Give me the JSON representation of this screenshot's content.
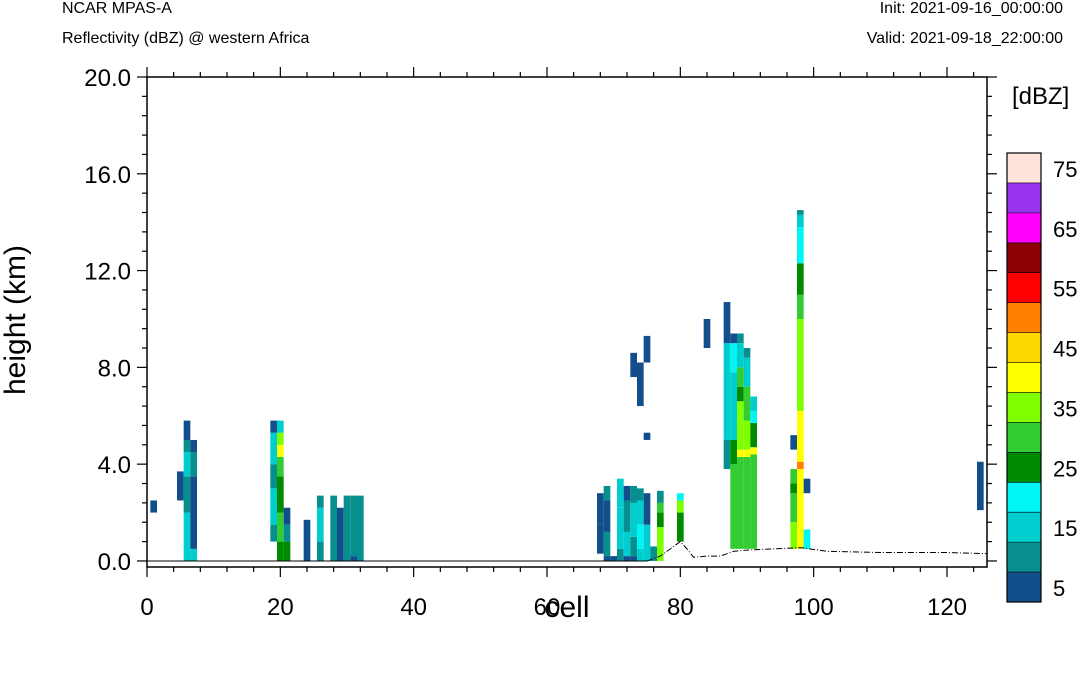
{
  "header": {
    "model": "NCAR MPAS-A",
    "field": "Reflectivity (dBZ) @ western Africa",
    "init": "Init: 2021-09-16_00:00:00",
    "valid": "Valid: 2021-09-18_22:00:00"
  },
  "chart_data": {
    "type": "heatmap",
    "title": "",
    "xlabel": "cell",
    "ylabel": "height (km)",
    "xlim": [
      0,
      126
    ],
    "ylim": [
      -0.25,
      20
    ],
    "x_ticks": [
      0,
      20,
      40,
      60,
      80,
      100,
      120
    ],
    "y_ticks": [
      0,
      4,
      8,
      12,
      16,
      20
    ],
    "y_tick_labels": [
      "0.0",
      "4.0",
      "8.0",
      "12.0",
      "16.0",
      "20.0"
    ],
    "colorbar": {
      "unit_label": "[dBZ]",
      "levels": [
        5,
        10,
        15,
        20,
        25,
        30,
        35,
        40,
        45,
        50,
        55,
        60,
        65,
        70,
        75
      ],
      "tick_labels": [
        "5",
        "15",
        "25",
        "35",
        "45",
        "55",
        "65",
        "75"
      ],
      "colors": [
        "#134e8c",
        "#078e8e",
        "#00cdcd",
        "#00f5f5",
        "#008a00",
        "#33cc33",
        "#7fff00",
        "#ffff00",
        "#ffd700",
        "#ff8000",
        "#ff0000",
        "#8b0000",
        "#ff00ff",
        "#9933ee",
        "#ffe4dc"
      ]
    },
    "terrain": [
      [
        75,
        0.0
      ],
      [
        77,
        0.2
      ],
      [
        79,
        0.6
      ],
      [
        80,
        0.8
      ],
      [
        81,
        0.5
      ],
      [
        82,
        0.15
      ],
      [
        84,
        0.2
      ],
      [
        86,
        0.2
      ],
      [
        87,
        0.3
      ],
      [
        88,
        0.4
      ],
      [
        90,
        0.45
      ],
      [
        94,
        0.5
      ],
      [
        98,
        0.55
      ],
      [
        102,
        0.4
      ],
      [
        110,
        0.35
      ],
      [
        120,
        0.35
      ],
      [
        126,
        0.3
      ]
    ],
    "columns": [
      {
        "x": 1,
        "cells": [
          [
            2.0,
            2.5,
            0
          ]
        ]
      },
      {
        "x": 5,
        "cells": [
          [
            2.5,
            3.7,
            0
          ]
        ]
      },
      {
        "x": 6,
        "cells": [
          [
            0,
            2.0,
            2
          ],
          [
            2.0,
            3.5,
            1
          ],
          [
            3.5,
            4.5,
            2
          ],
          [
            4.5,
            5.0,
            1
          ],
          [
            5.0,
            5.8,
            0
          ]
        ]
      },
      {
        "x": 7,
        "cells": [
          [
            0,
            0.5,
            2
          ],
          [
            0.5,
            3.5,
            0
          ],
          [
            3.5,
            4.5,
            1
          ],
          [
            4.5,
            5.0,
            0
          ]
        ]
      },
      {
        "x": 19,
        "cells": [
          [
            0.8,
            1.5,
            1
          ],
          [
            1.5,
            3.0,
            2
          ],
          [
            3.0,
            4.0,
            1
          ],
          [
            4.0,
            5.3,
            2
          ],
          [
            5.3,
            5.8,
            0
          ]
        ]
      },
      {
        "x": 20,
        "cells": [
          [
            0,
            0.8,
            4
          ],
          [
            0.8,
            2.0,
            5
          ],
          [
            2.0,
            3.5,
            4
          ],
          [
            3.5,
            4.3,
            5
          ],
          [
            4.3,
            4.8,
            7
          ],
          [
            4.8,
            5.3,
            6
          ],
          [
            5.3,
            5.8,
            2
          ]
        ]
      },
      {
        "x": 21,
        "cells": [
          [
            0,
            0.8,
            4
          ],
          [
            0.8,
            1.5,
            1
          ],
          [
            1.5,
            2.2,
            0
          ]
        ]
      },
      {
        "x": 24,
        "cells": [
          [
            0,
            1.7,
            0
          ]
        ]
      },
      {
        "x": 26,
        "cells": [
          [
            0,
            0.8,
            1
          ],
          [
            0.8,
            2.2,
            2
          ],
          [
            2.2,
            2.7,
            1
          ]
        ]
      },
      {
        "x": 28,
        "cells": [
          [
            0,
            2.7,
            1
          ]
        ]
      },
      {
        "x": 29,
        "cells": [
          [
            0,
            2.2,
            0
          ]
        ]
      },
      {
        "x": 30,
        "cells": [
          [
            0,
            2.7,
            1
          ]
        ]
      },
      {
        "x": 31,
        "cells": [
          [
            0,
            0.2,
            0
          ],
          [
            0.2,
            2.7,
            1
          ]
        ]
      },
      {
        "x": 32,
        "cells": [
          [
            0,
            2.7,
            1
          ]
        ]
      },
      {
        "x": 68,
        "cells": [
          [
            0.3,
            1.5,
            0
          ],
          [
            1.5,
            2.8,
            0
          ]
        ]
      },
      {
        "x": 69,
        "cells": [
          [
            0,
            0.2,
            0
          ],
          [
            0.2,
            1.2,
            1
          ],
          [
            1.2,
            2.5,
            0
          ],
          [
            2.5,
            3.1,
            1
          ]
        ]
      },
      {
        "x": 70,
        "cells": [
          [
            0,
            0.2,
            0
          ]
        ]
      },
      {
        "x": 71,
        "cells": [
          [
            0,
            0.5,
            1
          ],
          [
            0.5,
            2.2,
            2
          ],
          [
            2.2,
            3.4,
            2
          ]
        ]
      },
      {
        "x": 72,
        "cells": [
          [
            0,
            0.2,
            0
          ],
          [
            0.2,
            1.2,
            2
          ],
          [
            1.2,
            2.5,
            1
          ],
          [
            2.5,
            3.1,
            0
          ]
        ]
      },
      {
        "x": 73,
        "cells": [
          [
            0,
            0.2,
            0
          ],
          [
            0.2,
            1.0,
            1
          ],
          [
            1.0,
            2.4,
            2
          ],
          [
            2.4,
            3.1,
            1
          ],
          [
            7.6,
            8.6,
            0
          ]
        ]
      },
      {
        "x": 74,
        "cells": [
          [
            0,
            0.5,
            2
          ],
          [
            0.5,
            1.5,
            3
          ],
          [
            1.5,
            2.5,
            2
          ],
          [
            2.5,
            3.0,
            1
          ],
          [
            6.4,
            8.2,
            0
          ]
        ]
      },
      {
        "x": 75,
        "cells": [
          [
            0,
            1.5,
            2
          ],
          [
            1.5,
            2.8,
            0
          ],
          [
            5.0,
            5.3,
            0
          ],
          [
            8.2,
            9.3,
            0
          ]
        ]
      },
      {
        "x": 76,
        "cells": [
          [
            0,
            0.6,
            1
          ]
        ]
      },
      {
        "x": 77,
        "cells": [
          [
            0,
            1.4,
            6
          ],
          [
            1.4,
            2.0,
            4
          ],
          [
            2.0,
            2.4,
            5
          ],
          [
            2.4,
            2.9,
            1
          ]
        ]
      },
      {
        "x": 80,
        "cells": [
          [
            0.8,
            2.0,
            4
          ],
          [
            2.0,
            2.5,
            6
          ],
          [
            2.5,
            2.8,
            3
          ]
        ]
      },
      {
        "x": 84,
        "cells": [
          [
            8.8,
            10.0,
            0
          ]
        ]
      },
      {
        "x": 87,
        "cells": [
          [
            3.8,
            5.0,
            1
          ],
          [
            5.0,
            9.0,
            2
          ],
          [
            9.0,
            10.7,
            0
          ]
        ]
      },
      {
        "x": 88,
        "cells": [
          [
            0.5,
            4.0,
            5
          ],
          [
            4.0,
            5.0,
            4
          ],
          [
            5.0,
            7.8,
            2
          ],
          [
            7.8,
            9.0,
            3
          ],
          [
            9.0,
            9.4,
            0
          ]
        ]
      },
      {
        "x": 89,
        "cells": [
          [
            0.5,
            4.3,
            5
          ],
          [
            4.3,
            4.6,
            7
          ],
          [
            4.6,
            6.6,
            6
          ],
          [
            6.6,
            7.2,
            4
          ],
          [
            7.2,
            8.0,
            5
          ],
          [
            8.0,
            9.0,
            2
          ],
          [
            9.0,
            9.4,
            1
          ]
        ]
      },
      {
        "x": 90,
        "cells": [
          [
            0.5,
            4.3,
            5
          ],
          [
            4.3,
            4.6,
            7
          ],
          [
            4.6,
            5.8,
            6
          ],
          [
            5.8,
            7.2,
            5
          ],
          [
            7.2,
            8.4,
            2
          ],
          [
            8.4,
            8.8,
            1
          ]
        ]
      },
      {
        "x": 91,
        "cells": [
          [
            0.5,
            4.4,
            5
          ],
          [
            4.4,
            4.7,
            7
          ],
          [
            4.7,
            5.7,
            4
          ],
          [
            5.7,
            6.2,
            3
          ],
          [
            6.2,
            6.8,
            2
          ]
        ]
      },
      {
        "x": 97,
        "cells": [
          [
            0.5,
            1.6,
            6
          ],
          [
            1.6,
            2.8,
            5
          ],
          [
            2.8,
            3.2,
            4
          ],
          [
            3.2,
            3.8,
            5
          ],
          [
            4.6,
            5.2,
            0
          ]
        ]
      },
      {
        "x": 98,
        "cells": [
          [
            0.5,
            3.8,
            7
          ],
          [
            3.8,
            4.1,
            9
          ],
          [
            4.1,
            6.2,
            7
          ],
          [
            6.2,
            10.0,
            6
          ],
          [
            10.0,
            11.0,
            5
          ],
          [
            11.0,
            12.3,
            4
          ],
          [
            12.3,
            13.8,
            3
          ],
          [
            13.8,
            14.3,
            2
          ],
          [
            14.3,
            14.5,
            1
          ]
        ]
      },
      {
        "x": 99,
        "cells": [
          [
            0.5,
            1.3,
            3
          ],
          [
            2.8,
            3.4,
            0
          ]
        ]
      },
      {
        "x": 125,
        "cells": [
          [
            2.1,
            4.1,
            0
          ]
        ]
      }
    ]
  }
}
